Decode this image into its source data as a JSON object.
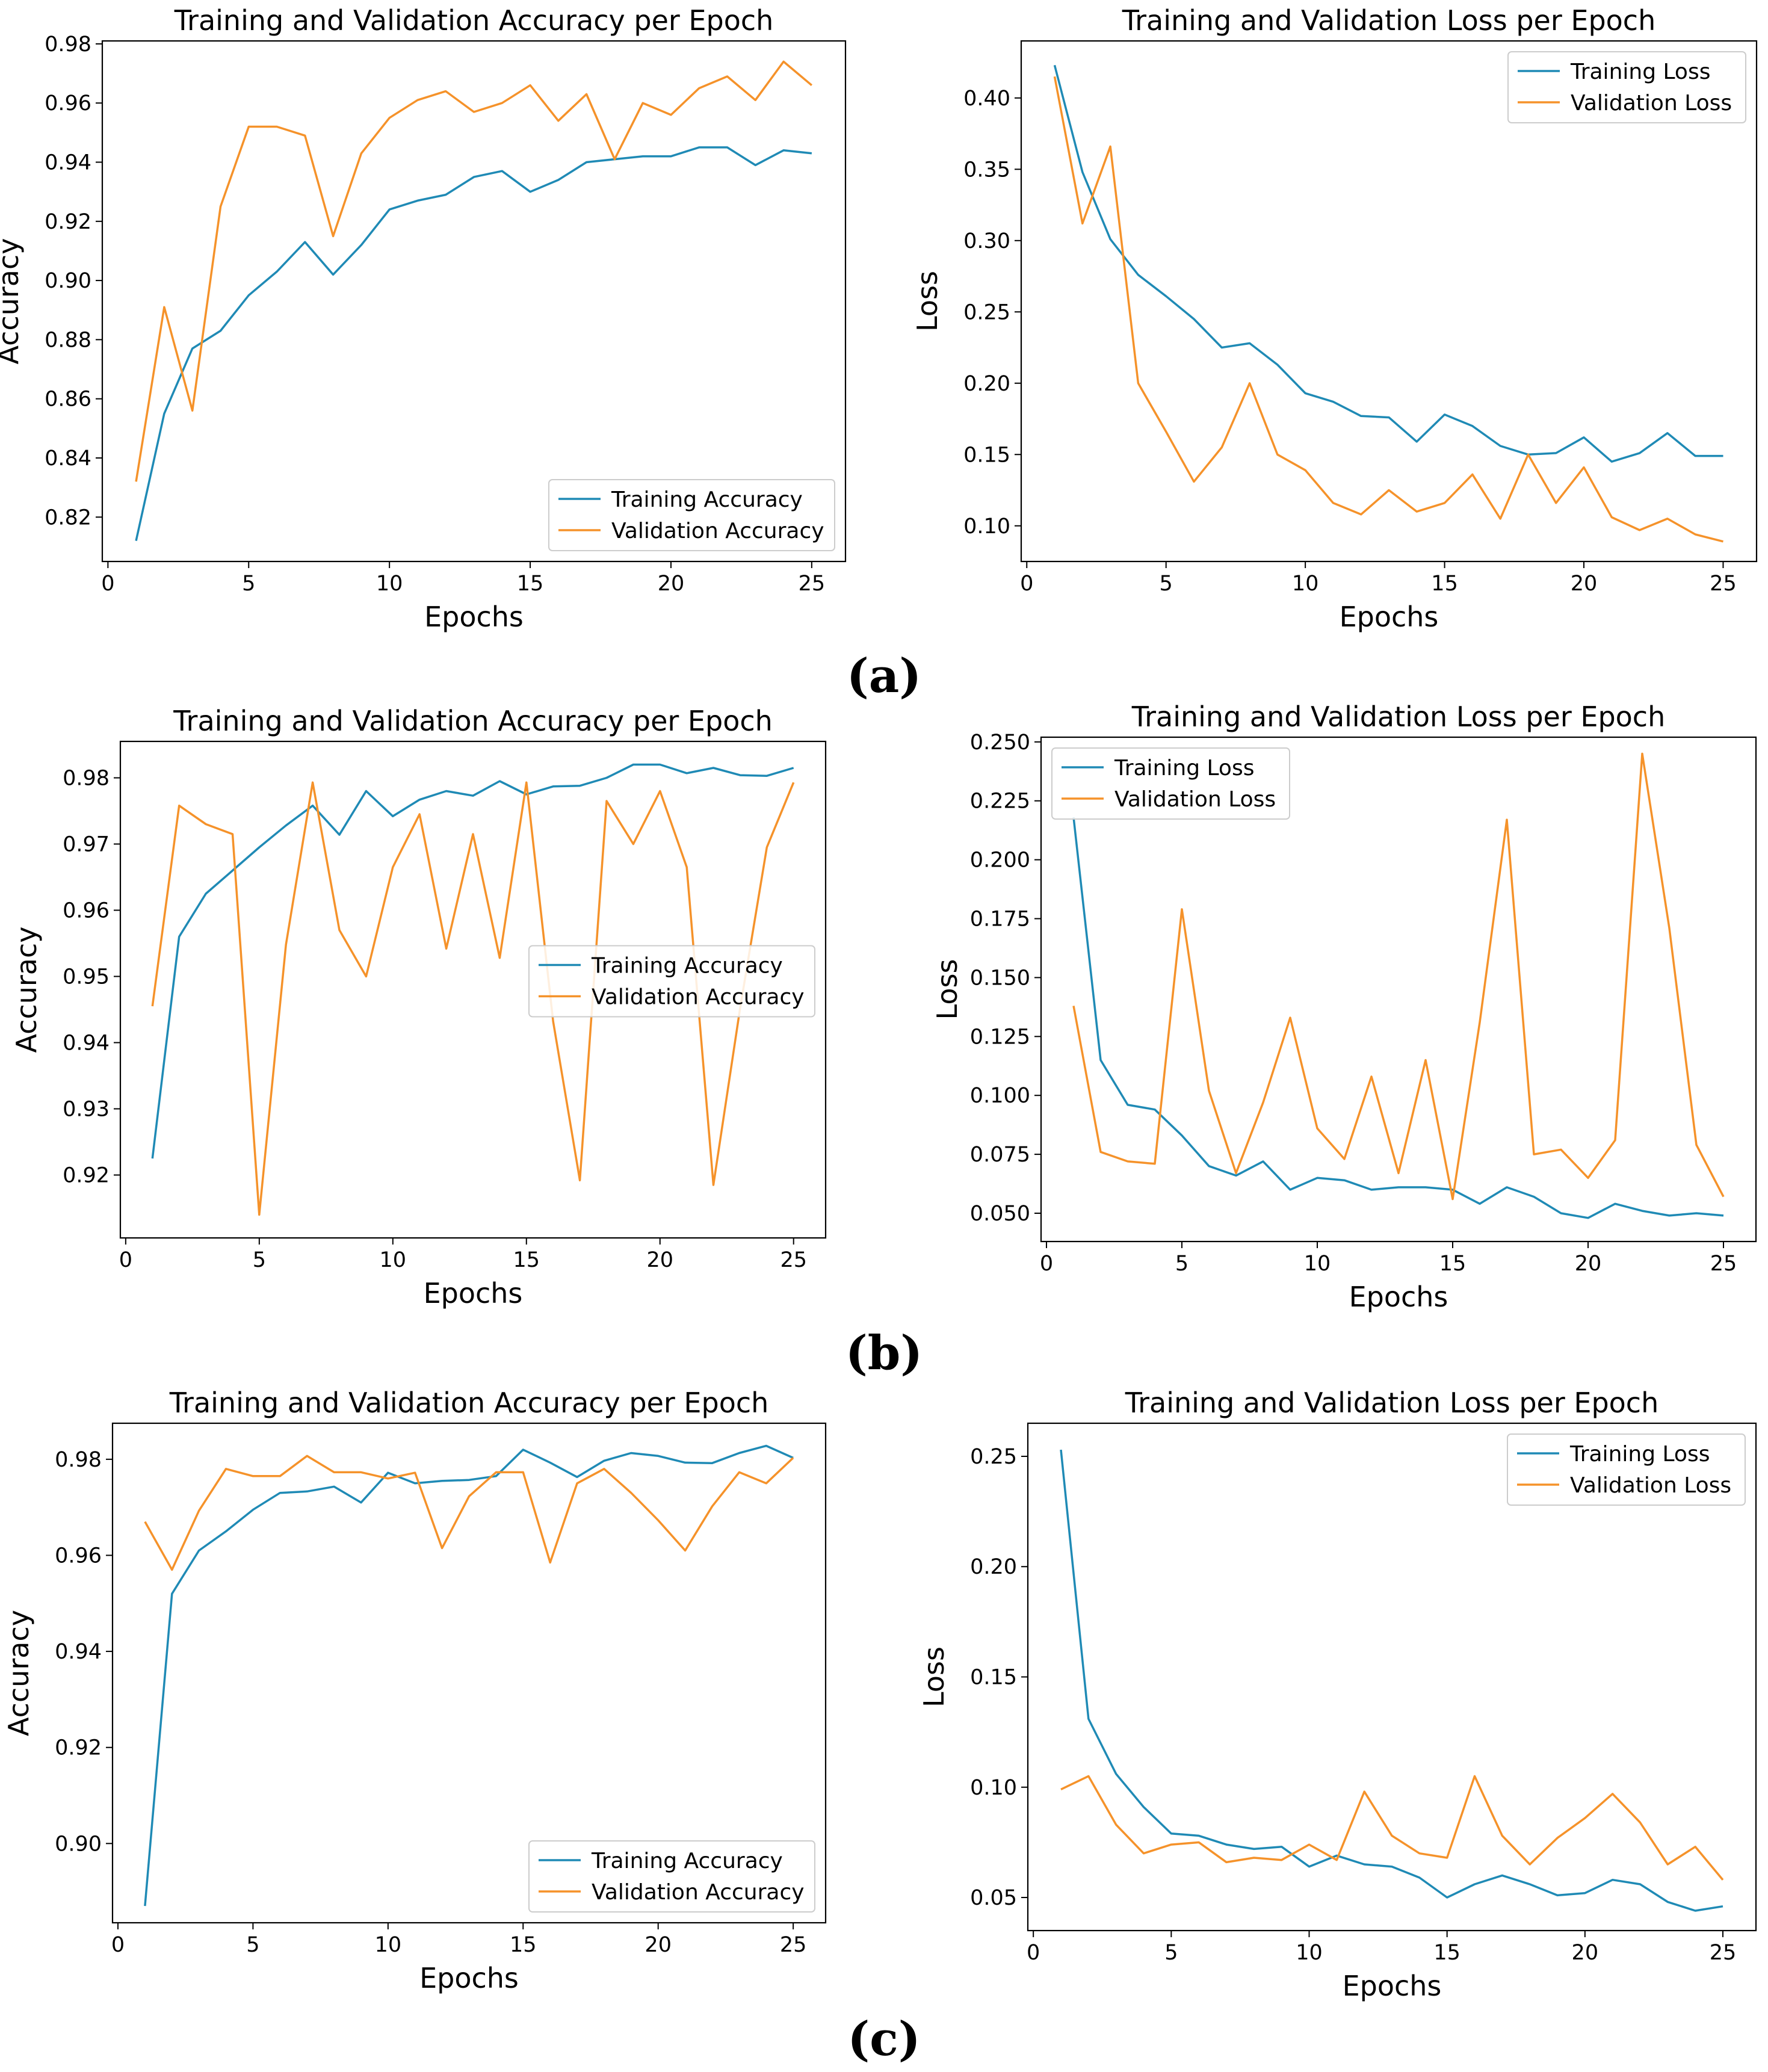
{
  "colors": {
    "training": "#1f8ab5",
    "validation": "#f5922a"
  },
  "captions": [
    "(a)",
    "(b)",
    "(c)"
  ],
  "chart_data": [
    {
      "id": "a-accuracy",
      "type": "line",
      "title": "Training and Validation Accuracy per Epoch",
      "xlabel": "Epochs",
      "ylabel": "Accuracy",
      "xlim": [
        -0.2,
        26.2
      ],
      "ylim": [
        0.805,
        0.981
      ],
      "xticks": [
        0,
        5,
        10,
        15,
        20,
        25
      ],
      "yticks": [
        0.82,
        0.84,
        0.86,
        0.88,
        0.9,
        0.92,
        0.94,
        0.96,
        0.98
      ],
      "yticklabels": [
        "0.82",
        "0.84",
        "0.86",
        "0.88",
        "0.90",
        "0.92",
        "0.94",
        "0.96",
        "0.98"
      ],
      "legend": "bottom-right",
      "x": [
        1,
        2,
        3,
        4,
        5,
        6,
        7,
        8,
        9,
        10,
        11,
        12,
        13,
        14,
        15,
        16,
        17,
        18,
        19,
        20,
        21,
        22,
        23,
        24,
        25
      ],
      "series": [
        {
          "name": "Training Accuracy",
          "values": [
            0.812,
            0.855,
            0.877,
            0.883,
            0.895,
            0.903,
            0.913,
            0.902,
            0.912,
            0.924,
            0.927,
            0.929,
            0.935,
            0.937,
            0.93,
            0.934,
            0.94,
            0.941,
            0.942,
            0.942,
            0.945,
            0.945,
            0.939,
            0.944,
            0.943
          ]
        },
        {
          "name": "Validation Accuracy",
          "values": [
            0.832,
            0.891,
            0.856,
            0.925,
            0.952,
            0.952,
            0.949,
            0.915,
            0.943,
            0.955,
            0.961,
            0.964,
            0.957,
            0.96,
            0.966,
            0.954,
            0.963,
            0.941,
            0.96,
            0.956,
            0.965,
            0.969,
            0.961,
            0.974,
            0.966
          ]
        }
      ]
    },
    {
      "id": "a-loss",
      "type": "line",
      "title": "Training and Validation Loss per Epoch",
      "xlabel": "Epochs",
      "ylabel": "Loss",
      "xlim": [
        -0.2,
        26.2
      ],
      "ylim": [
        0.075,
        0.44
      ],
      "xticks": [
        0,
        5,
        10,
        15,
        20,
        25
      ],
      "yticks": [
        0.1,
        0.15,
        0.2,
        0.25,
        0.3,
        0.35,
        0.4
      ],
      "yticklabels": [
        "0.10",
        "0.15",
        "0.20",
        "0.25",
        "0.30",
        "0.35",
        "0.40"
      ],
      "legend": "top-right",
      "x": [
        1,
        2,
        3,
        4,
        5,
        6,
        7,
        8,
        9,
        10,
        11,
        12,
        13,
        14,
        15,
        16,
        17,
        18,
        19,
        20,
        21,
        22,
        23,
        24,
        25
      ],
      "series": [
        {
          "name": "Training Loss",
          "values": [
            0.423,
            0.348,
            0.301,
            0.276,
            0.261,
            0.245,
            0.225,
            0.228,
            0.213,
            0.193,
            0.187,
            0.177,
            0.176,
            0.159,
            0.178,
            0.17,
            0.156,
            0.15,
            0.151,
            0.162,
            0.145,
            0.151,
            0.165,
            0.149,
            0.149
          ]
        },
        {
          "name": "Validation Loss",
          "values": [
            0.415,
            0.312,
            0.366,
            0.2,
            0.166,
            0.131,
            0.155,
            0.2,
            0.15,
            0.139,
            0.116,
            0.108,
            0.125,
            0.11,
            0.116,
            0.136,
            0.105,
            0.15,
            0.116,
            0.141,
            0.106,
            0.097,
            0.105,
            0.094,
            0.089
          ]
        }
      ]
    },
    {
      "id": "b-accuracy",
      "type": "line",
      "title": "Training and Validation Accuracy per Epoch",
      "xlabel": "Epochs",
      "ylabel": "Accuracy",
      "xlim": [
        -0.2,
        26.2
      ],
      "ylim": [
        0.9105,
        0.9855
      ],
      "xticks": [
        0,
        5,
        10,
        15,
        20,
        25
      ],
      "yticks": [
        0.92,
        0.93,
        0.94,
        0.95,
        0.96,
        0.97,
        0.98
      ],
      "yticklabels": [
        "0.92",
        "0.93",
        "0.94",
        "0.95",
        "0.96",
        "0.97",
        "0.98"
      ],
      "legend": "center-right",
      "x": [
        1,
        2,
        3,
        4,
        5,
        6,
        7,
        8,
        9,
        10,
        11,
        12,
        13,
        14,
        15,
        16,
        17,
        18,
        19,
        20,
        21,
        22,
        23,
        24,
        25
      ],
      "series": [
        {
          "name": "Training Accuracy",
          "values": [
            0.9225,
            0.956,
            0.9625,
            0.966,
            0.9695,
            0.9728,
            0.9758,
            0.9714,
            0.978,
            0.9742,
            0.9767,
            0.978,
            0.9773,
            0.9795,
            0.9775,
            0.9787,
            0.9788,
            0.98,
            0.982,
            0.982,
            0.9807,
            0.9815,
            0.9804,
            0.9803,
            0.9815
          ]
        },
        {
          "name": "Validation Accuracy",
          "values": [
            0.9455,
            0.9758,
            0.973,
            0.9715,
            0.914,
            0.9548,
            0.9793,
            0.957,
            0.95,
            0.9665,
            0.9745,
            0.9542,
            0.9715,
            0.9528,
            0.9793,
            0.9432,
            0.9192,
            0.9765,
            0.97,
            0.978,
            0.9665,
            0.9185,
            0.9452,
            0.9695,
            0.9793
          ]
        }
      ]
    },
    {
      "id": "b-loss",
      "type": "line",
      "title": "Training and Validation Loss per Epoch",
      "xlabel": "Epochs",
      "ylabel": "Loss",
      "xlim": [
        -0.2,
        26.2
      ],
      "ylim": [
        0.038,
        0.252
      ],
      "xticks": [
        0,
        5,
        10,
        15,
        20,
        25
      ],
      "yticks": [
        0.05,
        0.075,
        0.1,
        0.125,
        0.15,
        0.175,
        0.2,
        0.225,
        0.25
      ],
      "yticklabels": [
        "0.050",
        "0.075",
        "0.100",
        "0.125",
        "0.150",
        "0.175",
        "0.200",
        "0.225",
        "0.250"
      ],
      "legend": "top-left",
      "x": [
        1,
        2,
        3,
        4,
        5,
        6,
        7,
        8,
        9,
        10,
        11,
        12,
        13,
        14,
        15,
        16,
        17,
        18,
        19,
        20,
        21,
        22,
        23,
        24,
        25
      ],
      "series": [
        {
          "name": "Training Loss",
          "values": [
            0.218,
            0.115,
            0.096,
            0.094,
            0.083,
            0.07,
            0.066,
            0.072,
            0.06,
            0.065,
            0.064,
            0.06,
            0.061,
            0.061,
            0.06,
            0.054,
            0.061,
            0.057,
            0.05,
            0.048,
            0.054,
            0.051,
            0.049,
            0.05,
            0.049
          ]
        },
        {
          "name": "Validation Loss",
          "values": [
            0.138,
            0.076,
            0.072,
            0.071,
            0.179,
            0.102,
            0.067,
            0.097,
            0.133,
            0.086,
            0.073,
            0.108,
            0.067,
            0.115,
            0.056,
            0.131,
            0.217,
            0.075,
            0.077,
            0.065,
            0.081,
            0.245,
            0.171,
            0.079,
            0.057
          ]
        }
      ]
    },
    {
      "id": "c-accuracy",
      "type": "line",
      "title": "Training and Validation Accuracy per Epoch",
      "xlabel": "Epochs",
      "ylabel": "Accuracy",
      "xlim": [
        -0.2,
        26.2
      ],
      "ylim": [
        0.8835,
        0.9875
      ],
      "xticks": [
        0,
        5,
        10,
        15,
        20,
        25
      ],
      "yticks": [
        0.9,
        0.92,
        0.94,
        0.96,
        0.98
      ],
      "yticklabels": [
        "0.90",
        "0.92",
        "0.94",
        "0.96",
        "0.98"
      ],
      "legend": "bottom-right",
      "x": [
        1,
        2,
        3,
        4,
        5,
        6,
        7,
        8,
        9,
        10,
        11,
        12,
        13,
        14,
        15,
        16,
        17,
        18,
        19,
        20,
        21,
        22,
        23,
        24,
        25
      ],
      "series": [
        {
          "name": "Training Accuracy",
          "values": [
            0.887,
            0.952,
            0.961,
            0.965,
            0.9695,
            0.973,
            0.9733,
            0.9743,
            0.971,
            0.9772,
            0.975,
            0.9755,
            0.9757,
            0.9765,
            0.982,
            0.9793,
            0.9763,
            0.9797,
            0.9813,
            0.9807,
            0.9793,
            0.9792,
            0.9813,
            0.9828,
            0.9803
          ]
        },
        {
          "name": "Validation Accuracy",
          "values": [
            0.967,
            0.957,
            0.9693,
            0.978,
            0.9765,
            0.9765,
            0.9807,
            0.9773,
            0.9773,
            0.976,
            0.9772,
            0.9615,
            0.9723,
            0.9773,
            0.9773,
            0.9585,
            0.975,
            0.978,
            0.973,
            0.9673,
            0.961,
            0.9702,
            0.9773,
            0.975,
            0.9803
          ]
        }
      ]
    },
    {
      "id": "c-loss",
      "type": "line",
      "title": "Training and Validation Loss per Epoch",
      "xlabel": "Epochs",
      "ylabel": "Loss",
      "xlim": [
        -0.2,
        26.2
      ],
      "ylim": [
        0.035,
        0.265
      ],
      "xticks": [
        0,
        5,
        10,
        15,
        20,
        25
      ],
      "yticks": [
        0.05,
        0.1,
        0.15,
        0.2,
        0.25
      ],
      "yticklabels": [
        "0.05",
        "0.10",
        "0.15",
        "0.20",
        "0.25"
      ],
      "legend": "top-right",
      "x": [
        1,
        2,
        3,
        4,
        5,
        6,
        7,
        8,
        9,
        10,
        11,
        12,
        13,
        14,
        15,
        16,
        17,
        18,
        19,
        20,
        21,
        22,
        23,
        24,
        25
      ],
      "series": [
        {
          "name": "Training Loss",
          "values": [
            0.253,
            0.131,
            0.106,
            0.091,
            0.079,
            0.078,
            0.074,
            0.072,
            0.073,
            0.064,
            0.069,
            0.065,
            0.064,
            0.059,
            0.05,
            0.056,
            0.06,
            0.056,
            0.051,
            0.052,
            0.058,
            0.056,
            0.048,
            0.044,
            0.046
          ]
        },
        {
          "name": "Validation Loss",
          "values": [
            0.099,
            0.105,
            0.083,
            0.07,
            0.074,
            0.075,
            0.066,
            0.068,
            0.067,
            0.074,
            0.067,
            0.098,
            0.078,
            0.07,
            0.068,
            0.105,
            0.078,
            0.065,
            0.077,
            0.086,
            0.097,
            0.084,
            0.065,
            0.073,
            0.058
          ]
        }
      ]
    }
  ]
}
